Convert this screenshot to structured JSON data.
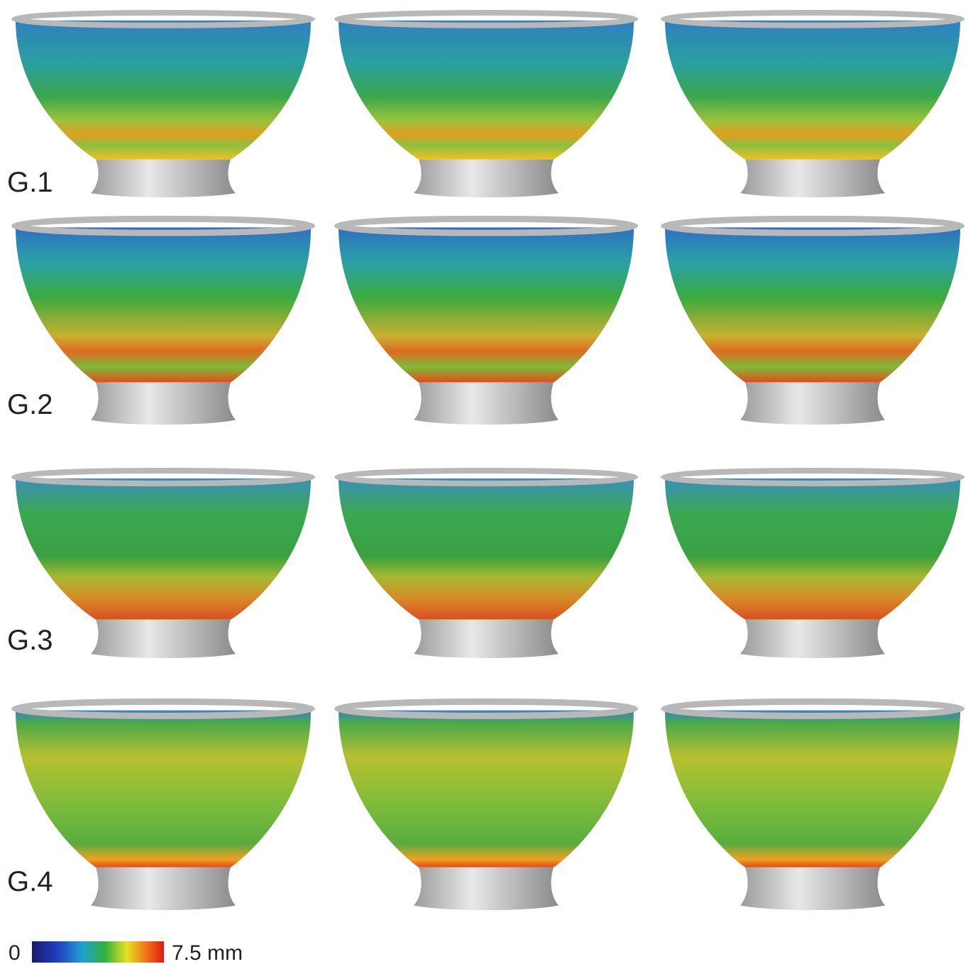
{
  "rows": [
    {
      "label": "G.1"
    },
    {
      "label": "G.2"
    },
    {
      "label": "G.3"
    },
    {
      "label": "G.4"
    }
  ],
  "colorbar": {
    "min_label": "0",
    "max_label": "7.5 mm"
  }
}
